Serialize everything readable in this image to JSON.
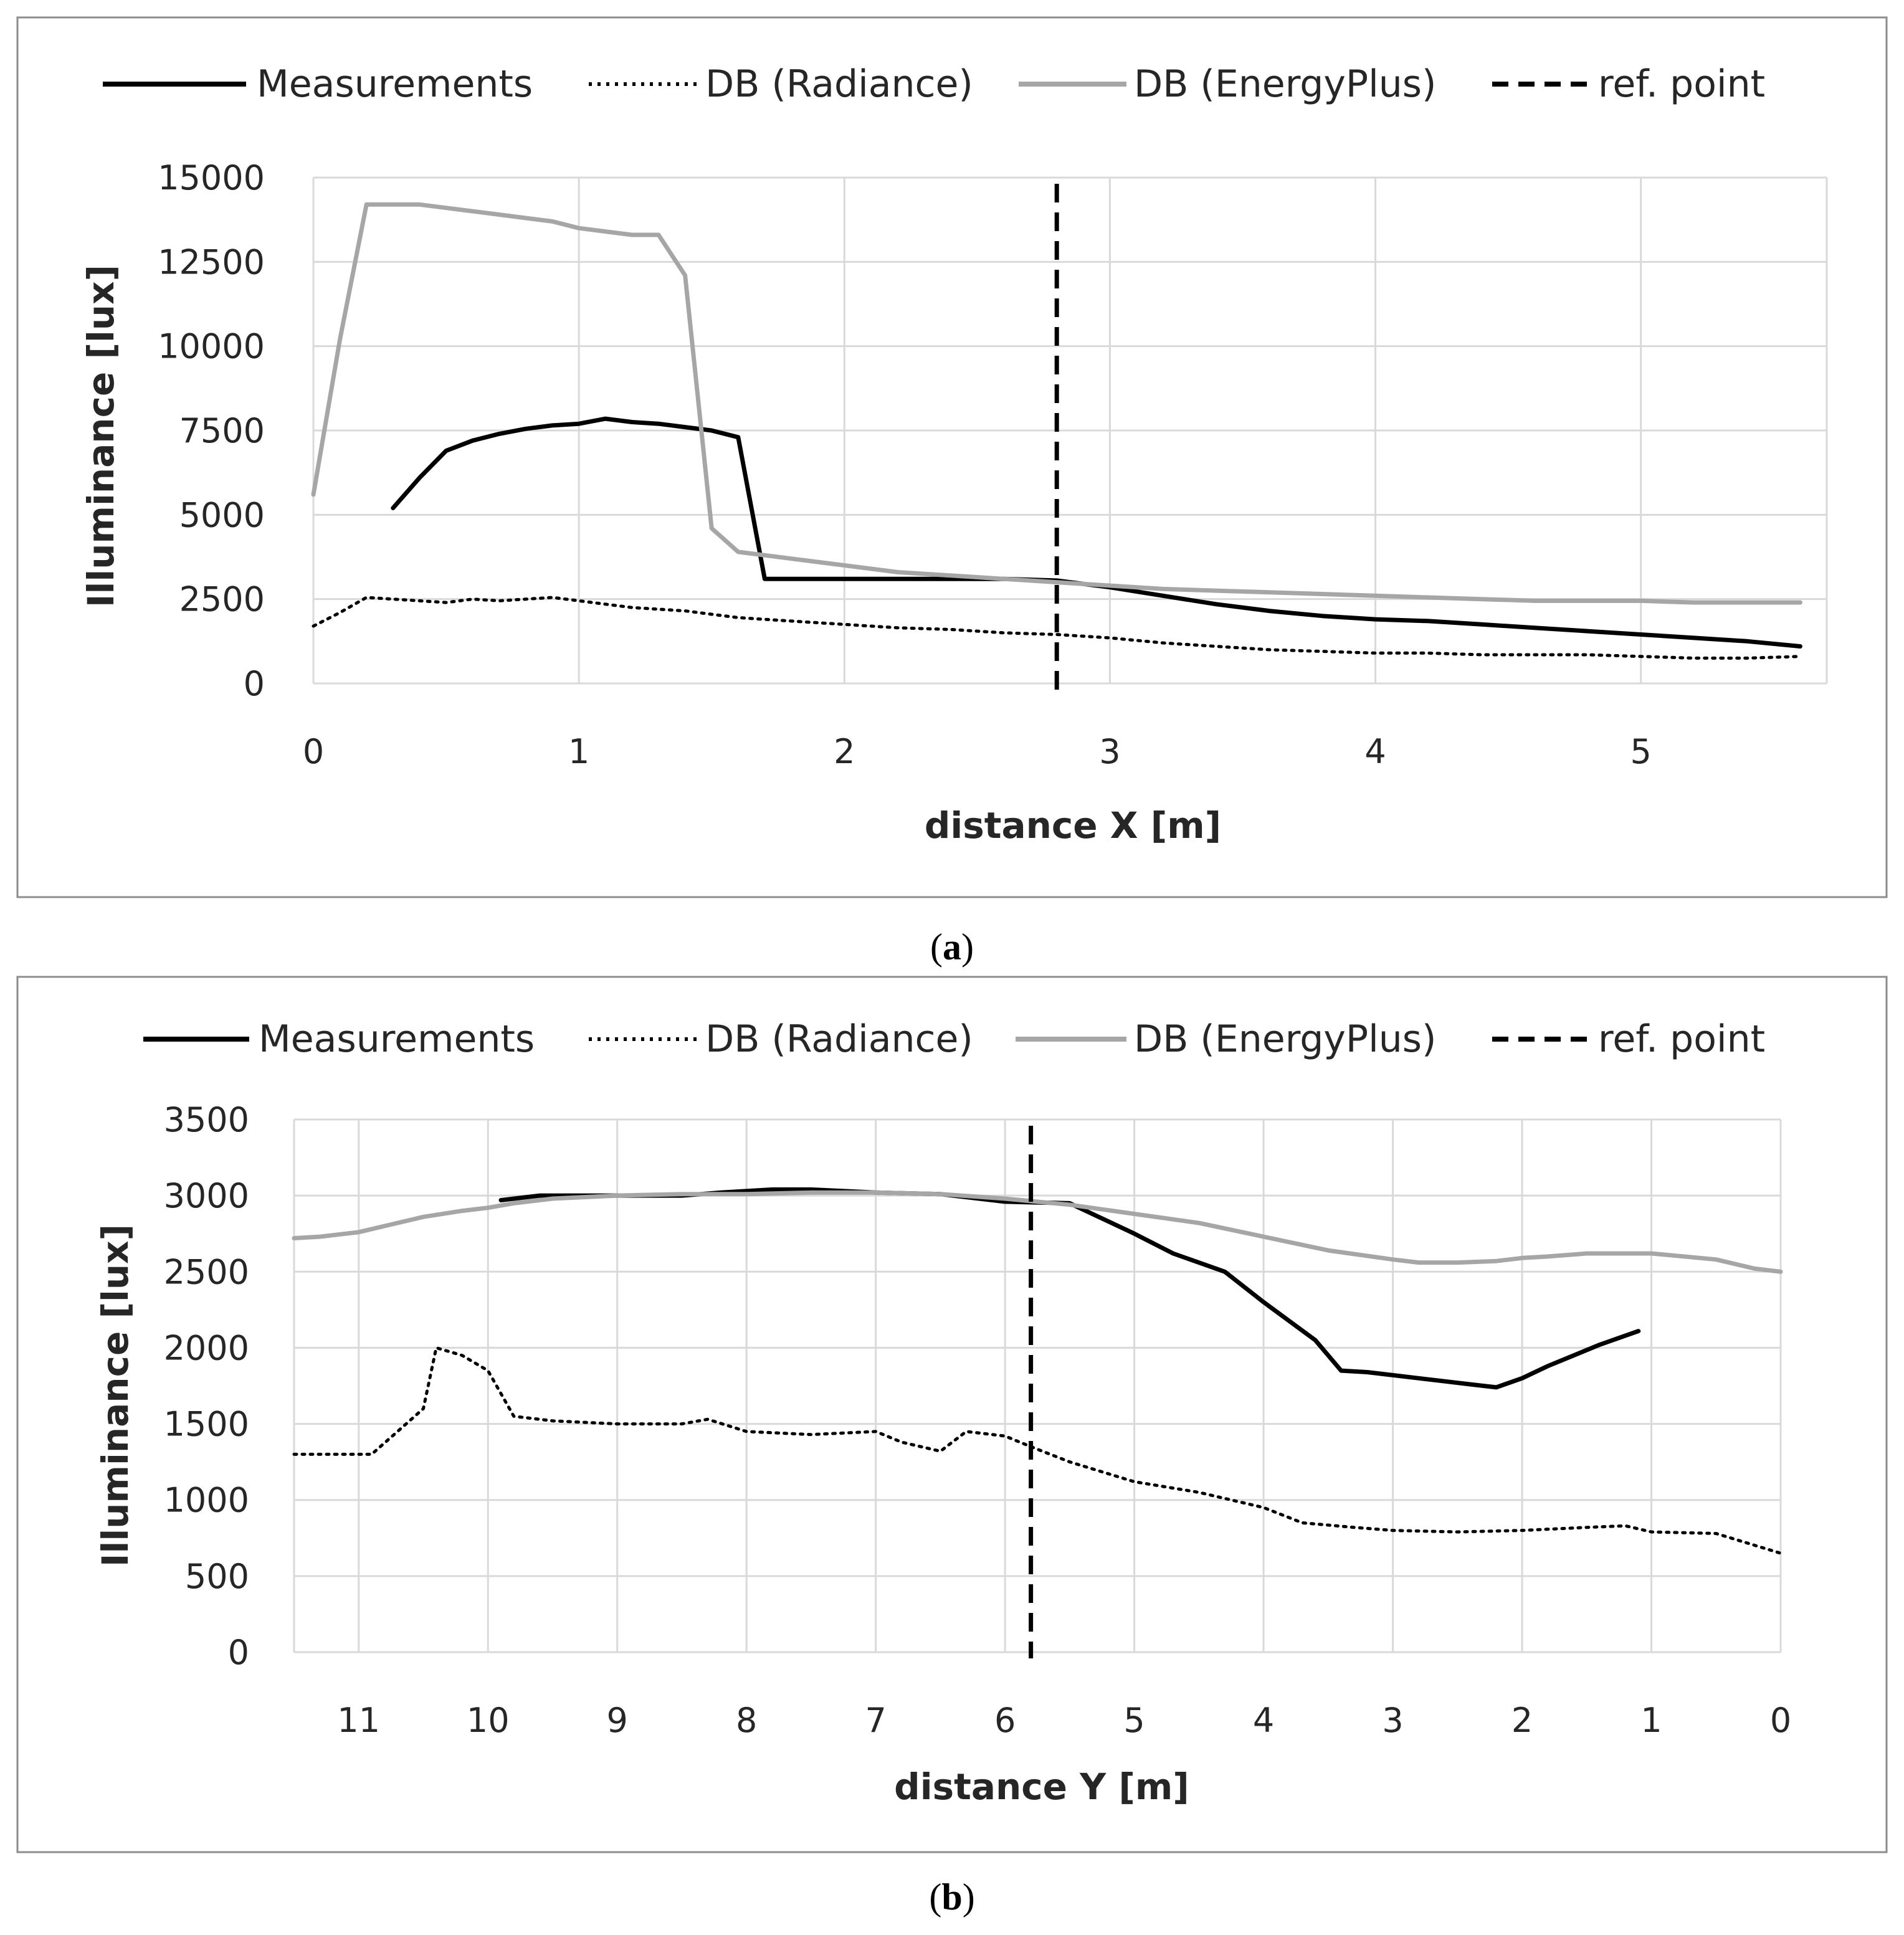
{
  "chart_data": [
    {
      "type": "line",
      "panel_caption_letter": "a",
      "xlabel": "distance X [m]",
      "ylabel": "Illuminance [lux]",
      "xlim": [
        0,
        5.7
      ],
      "ylim": [
        0,
        15000
      ],
      "x_reversed": false,
      "x_ticks": [
        0,
        1,
        2,
        3,
        4,
        5
      ],
      "y_ticks": [
        0,
        2500,
        5000,
        7500,
        10000,
        12500,
        15000
      ],
      "grid": true,
      "legend": [
        "Measurements",
        "DB (Radiance)",
        "DB (EnergyPlus)",
        "ref. point"
      ],
      "ref_point_x": 2.8,
      "series": [
        {
          "name": "Measurements",
          "x": [
            0.3,
            0.4,
            0.5,
            0.6,
            0.7,
            0.8,
            0.9,
            1.0,
            1.1,
            1.2,
            1.3,
            1.4,
            1.5,
            1.6,
            1.7,
            1.8,
            2.0,
            2.2,
            2.4,
            2.6,
            2.8,
            3.0,
            3.2,
            3.4,
            3.6,
            3.8,
            4.0,
            4.2,
            4.4,
            4.6,
            4.8,
            5.0,
            5.2,
            5.4,
            5.6
          ],
          "values": [
            5200,
            6100,
            6900,
            7200,
            7400,
            7550,
            7650,
            7700,
            7850,
            7750,
            7700,
            7600,
            7500,
            7300,
            3100,
            3100,
            3100,
            3100,
            3100,
            3100,
            3050,
            2850,
            2600,
            2350,
            2150,
            2000,
            1900,
            1850,
            1750,
            1650,
            1550,
            1450,
            1350,
            1250,
            1100
          ]
        },
        {
          "name": "DB (Radiance)",
          "x": [
            0,
            0.1,
            0.2,
            0.3,
            0.4,
            0.5,
            0.6,
            0.7,
            0.8,
            0.9,
            1.0,
            1.2,
            1.4,
            1.6,
            1.8,
            2.0,
            2.2,
            2.4,
            2.6,
            2.8,
            3.0,
            3.2,
            3.4,
            3.6,
            3.8,
            4.0,
            4.2,
            4.4,
            4.6,
            4.8,
            5.0,
            5.2,
            5.4,
            5.6
          ],
          "values": [
            1700,
            2100,
            2550,
            2500,
            2450,
            2400,
            2500,
            2450,
            2500,
            2550,
            2450,
            2250,
            2150,
            1950,
            1850,
            1750,
            1650,
            1600,
            1500,
            1450,
            1350,
            1200,
            1100,
            1000,
            950,
            900,
            900,
            850,
            850,
            850,
            800,
            750,
            750,
            800
          ]
        },
        {
          "name": "DB (EnergyPlus)",
          "x": [
            0,
            0.1,
            0.2,
            0.3,
            0.4,
            0.5,
            0.6,
            0.7,
            0.8,
            0.9,
            1.0,
            1.1,
            1.2,
            1.3,
            1.4,
            1.5,
            1.6,
            1.8,
            2.0,
            2.2,
            2.4,
            2.6,
            2.8,
            3.0,
            3.2,
            3.4,
            3.6,
            3.8,
            4.0,
            4.2,
            4.4,
            4.6,
            4.8,
            5.0,
            5.2,
            5.4,
            5.6
          ],
          "values": [
            5600,
            10200,
            14200,
            14200,
            14200,
            14100,
            14000,
            13900,
            13800,
            13700,
            13500,
            13400,
            13300,
            13300,
            12100,
            4600,
            3900,
            3700,
            3500,
            3300,
            3200,
            3100,
            3000,
            2900,
            2800,
            2750,
            2700,
            2650,
            2600,
            2550,
            2500,
            2450,
            2450,
            2450,
            2400,
            2400,
            2400
          ]
        }
      ]
    },
    {
      "type": "line",
      "panel_caption_letter": "b",
      "xlabel": "distance Y [m]",
      "ylabel": "Illuminance [lux]",
      "xlim": [
        11.5,
        0
      ],
      "ylim": [
        0,
        3500
      ],
      "x_reversed": true,
      "x_ticks": [
        11,
        10,
        9,
        8,
        7,
        6,
        5,
        4,
        3,
        2,
        1,
        0
      ],
      "y_ticks": [
        0,
        500,
        1000,
        1500,
        2000,
        2500,
        3000,
        3500
      ],
      "grid": true,
      "legend": [
        "Measurements",
        "DB (Radiance)",
        "DB (EnergyPlus)",
        "ref. point"
      ],
      "ref_point_x": 5.8,
      "series": [
        {
          "name": "Measurements",
          "x": [
            9.9,
            9.6,
            9.0,
            8.5,
            8.2,
            7.8,
            7.5,
            7.0,
            6.5,
            6.0,
            5.5,
            5.0,
            4.7,
            4.3,
            4.0,
            3.6,
            3.4,
            3.2,
            3.0,
            2.8,
            2.6,
            2.4,
            2.2,
            2.0,
            1.8,
            1.6,
            1.4,
            1.1
          ],
          "values": [
            2970,
            3000,
            3000,
            3000,
            3020,
            3040,
            3040,
            3020,
            3010,
            2960,
            2950,
            2750,
            2620,
            2500,
            2300,
            2050,
            1850,
            1840,
            1820,
            1800,
            1780,
            1760,
            1740,
            1800,
            1880,
            1950,
            2020,
            2110
          ]
        },
        {
          "name": "DB (Radiance)",
          "x": [
            11.5,
            11.2,
            10.9,
            10.7,
            10.5,
            10.4,
            10.2,
            10.0,
            9.8,
            9.5,
            9.0,
            8.5,
            8.3,
            8.0,
            7.5,
            7.0,
            6.8,
            6.5,
            6.3,
            6.0,
            5.8,
            5.5,
            5.0,
            4.5,
            4.0,
            3.7,
            3.3,
            3.0,
            2.5,
            2.0,
            1.5,
            1.2,
            1.0,
            0.5,
            0.0
          ],
          "values": [
            1300,
            1300,
            1300,
            1450,
            1600,
            2000,
            1950,
            1850,
            1550,
            1520,
            1500,
            1500,
            1530,
            1450,
            1430,
            1450,
            1380,
            1320,
            1450,
            1420,
            1350,
            1250,
            1120,
            1050,
            950,
            850,
            820,
            800,
            790,
            800,
            820,
            830,
            790,
            780,
            650
          ]
        },
        {
          "name": "DB (EnergyPlus)",
          "x": [
            11.5,
            11.3,
            11.0,
            10.8,
            10.5,
            10.2,
            10.0,
            9.8,
            9.5,
            9.0,
            8.5,
            8.0,
            7.5,
            7.0,
            6.5,
            6.0,
            5.5,
            5.0,
            4.5,
            4.0,
            3.5,
            3.0,
            2.8,
            2.5,
            2.2,
            2.0,
            1.8,
            1.5,
            1.2,
            1.0,
            0.5,
            0.2,
            0.0
          ],
          "values": [
            2720,
            2730,
            2760,
            2800,
            2860,
            2900,
            2920,
            2950,
            2980,
            3000,
            3010,
            3010,
            3020,
            3020,
            3010,
            2980,
            2940,
            2880,
            2820,
            2730,
            2640,
            2580,
            2560,
            2560,
            2570,
            2590,
            2600,
            2620,
            2620,
            2620,
            2580,
            2520,
            2500
          ]
        }
      ]
    }
  ]
}
